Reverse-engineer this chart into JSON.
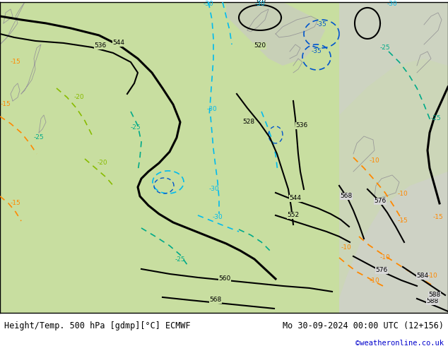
{
  "title_left": "Height/Temp. 500 hPa [gdmp][°C] ECMWF",
  "title_right": "Mo 30-09-2024 00:00 UTC (12+156)",
  "credit": "©weatheronline.co.uk",
  "bg_green": "#c8dea0",
  "bg_gray": "#c8c8c8",
  "bg_white": "#e8e8e8",
  "z500_color": "#000000",
  "temp_cyan": "#00bbee",
  "temp_blue": "#0055cc",
  "temp_teal": "#00aa88",
  "temp_green": "#88bb00",
  "temp_orange": "#ff8800",
  "title_fontsize": 8.5,
  "credit_fontsize": 7.5
}
